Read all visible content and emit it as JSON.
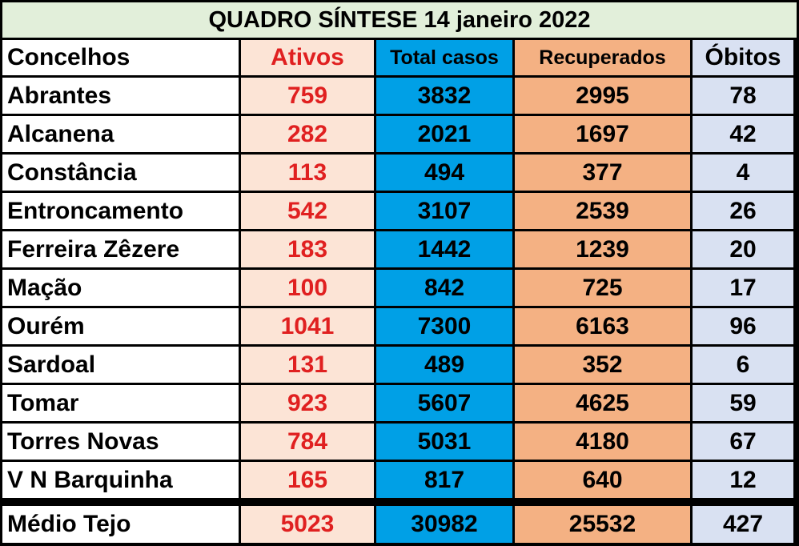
{
  "title": "QUADRO SÍNTESE 14 janeiro 2022",
  "headers": {
    "concelhos": "Concelhos",
    "ativos": "Ativos",
    "total_casos": "Total casos",
    "recuperados": "Recuperados",
    "obitos": "Óbitos"
  },
  "rows": [
    {
      "name": "Abrantes",
      "ativos": "759",
      "total": "3832",
      "recuperados": "2995",
      "obitos": "78"
    },
    {
      "name": "Alcanena",
      "ativos": "282",
      "total": "2021",
      "recuperados": "1697",
      "obitos": "42"
    },
    {
      "name": "Constância",
      "ativos": "113",
      "total": "494",
      "recuperados": "377",
      "obitos": "4"
    },
    {
      "name": "Entroncamento",
      "ativos": "542",
      "total": "3107",
      "recuperados": "2539",
      "obitos": "26"
    },
    {
      "name": "Ferreira Zêzere",
      "ativos": "183",
      "total": "1442",
      "recuperados": "1239",
      "obitos": "20"
    },
    {
      "name": "Mação",
      "ativos": "100",
      "total": "842",
      "recuperados": "725",
      "obitos": "17"
    },
    {
      "name": "Ourém",
      "ativos": "1041",
      "total": "7300",
      "recuperados": "6163",
      "obitos": "96"
    },
    {
      "name": "Sardoal",
      "ativos": "131",
      "total": "489",
      "recuperados": "352",
      "obitos": "6"
    },
    {
      "name": "Tomar",
      "ativos": "923",
      "total": "5607",
      "recuperados": "4625",
      "obitos": "59"
    },
    {
      "name": "Torres Novas",
      "ativos": "784",
      "total": "5031",
      "recuperados": "4180",
      "obitos": "67"
    },
    {
      "name": "V N Barquinha",
      "ativos": "165",
      "total": "817",
      "recuperados": "640",
      "obitos": "12"
    }
  ],
  "total_row": {
    "name": "Médio Tejo",
    "ativos": "5023",
    "total": "30982",
    "recuperados": "25532",
    "obitos": "427"
  },
  "colors": {
    "title_bg": "#e2efda",
    "ativos_bg": "#fce4d6",
    "ativos_text": "#e02020",
    "total_bg": "#00a0e6",
    "recuperados_bg": "#f4b183",
    "obitos_bg": "#d9e1f2"
  }
}
